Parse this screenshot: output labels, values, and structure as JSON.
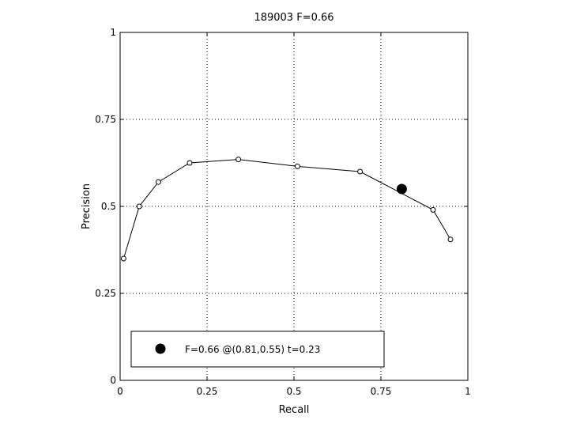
{
  "chart_data": {
    "type": "line",
    "title": "189003 F=0.66",
    "xlabel": "Recall",
    "ylabel": "Precision",
    "xlim": [
      0,
      1
    ],
    "ylim": [
      0,
      1
    ],
    "xticks": [
      "0",
      "0.25",
      "0.5",
      "0.75",
      "1"
    ],
    "xtick_values": [
      0,
      0.25,
      0.5,
      0.75,
      1
    ],
    "yticks": [
      "0",
      "0.25",
      "0.5",
      "0.75",
      "1"
    ],
    "ytick_values": [
      0,
      0.25,
      0.5,
      0.75,
      1
    ],
    "grid": true,
    "series": [
      {
        "x": [
          0.01,
          0.055,
          0.11,
          0.2,
          0.34,
          0.51,
          0.69,
          0.9,
          0.95
        ],
        "y": [
          0.35,
          0.5,
          0.57,
          0.625,
          0.635,
          0.615,
          0.6,
          0.49,
          0.405
        ],
        "color": "#000000",
        "marker": "open-circle"
      }
    ],
    "highlight_point": {
      "x": 0.81,
      "y": 0.55,
      "color": "#000000",
      "marker": "filled-circle"
    },
    "legend": {
      "text": "F=0.66 @(0.81,0.55) t=0.23",
      "placement": "bottom"
    }
  }
}
